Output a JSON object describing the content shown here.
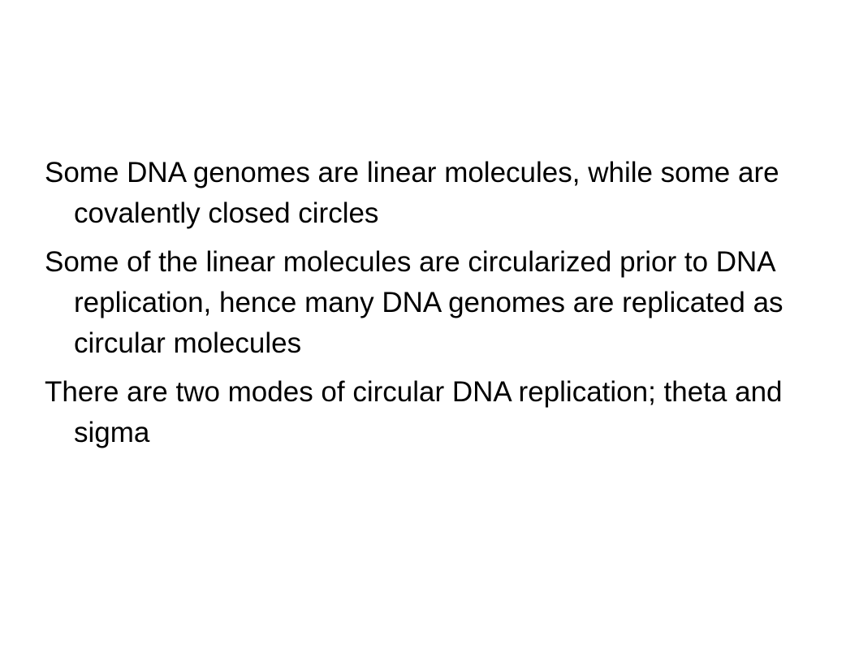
{
  "slide": {
    "paragraphs": [
      "Some DNA genomes are linear molecules, while some are covalently closed circles",
      "Some of the linear molecules are circularized prior to DNA replication, hence many DNA genomes are replicated as circular molecules",
      "There are two modes of circular DNA replication; theta and sigma"
    ]
  },
  "colors": {
    "background": "#ffffff",
    "text": "#000000"
  }
}
